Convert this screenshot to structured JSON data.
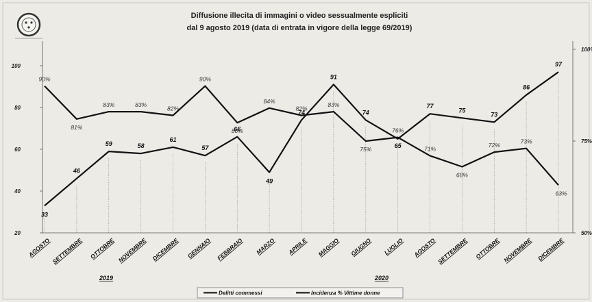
{
  "chart_data": {
    "type": "line",
    "title_line1": "Diffusione illecita di immagini o video sessualmente espliciti",
    "title_line2": "dal 9 agosto 2019 (data di entrata in vigore della legge 69/2019)",
    "categories": [
      "AGOSTO",
      "SETTEMBRE",
      "OTTOBRE",
      "NOVEMBRE",
      "DICEMBRE",
      "GENNAIO",
      "FEBBRAIO",
      "MARZO",
      "APRILE",
      "MAGGIO",
      "GIUGNO",
      "LUGLIO",
      "AGOSTO",
      "SETTEMBRE",
      "OTTOBRE",
      "NOVEMBRE",
      "DICEMBRE"
    ],
    "year_labels": [
      "2019",
      "2020"
    ],
    "y_left": {
      "ticks": [
        "20",
        "40",
        "60",
        "80",
        "100"
      ],
      "ylim": [
        20,
        105
      ]
    },
    "y_right": {
      "ticks": [
        "50%",
        "75%",
        "100%"
      ],
      "ylim": [
        50,
        100
      ]
    },
    "series": [
      {
        "name": "Delitti commessi",
        "axis": "left",
        "values": [
          33,
          46,
          59,
          58,
          61,
          57,
          66,
          49,
          74,
          91,
          74,
          65,
          77,
          75,
          73,
          86,
          97
        ],
        "labels": [
          "33",
          "46",
          "59",
          "58",
          "61",
          "57",
          "66",
          "49",
          "74",
          "91",
          "74",
          "65",
          "77",
          "75",
          "73",
          "86",
          "97"
        ]
      },
      {
        "name": "Incidenza % Vittime donne",
        "axis": "right",
        "values": [
          90,
          81,
          83,
          83,
          82,
          90,
          80,
          84,
          82,
          83,
          75,
          76,
          71,
          68,
          72,
          73,
          63
        ],
        "labels": [
          "90%",
          "81%",
          "83%",
          "83%",
          "82%",
          "90%",
          "80%",
          "84%",
          "82%",
          "83%",
          "75%",
          "76%",
          "71%",
          "68%",
          "72%",
          "73%",
          "63%"
        ]
      }
    ],
    "legend_position": "bottom",
    "grid": false
  }
}
